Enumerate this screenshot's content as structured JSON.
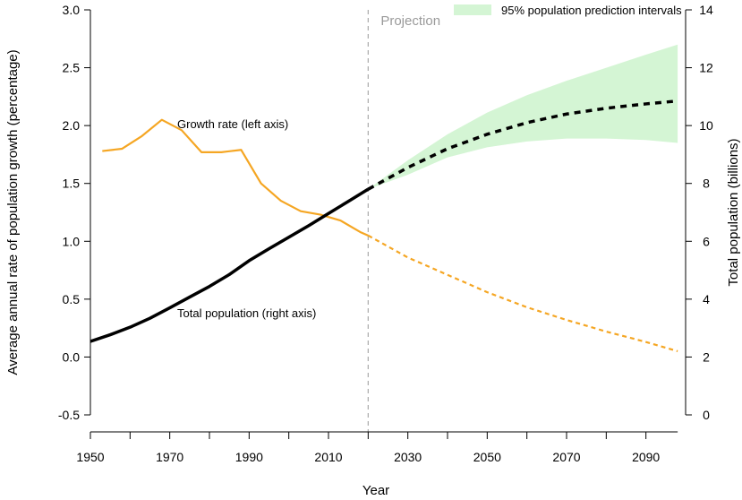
{
  "chart_data": {
    "type": "line",
    "xlabel": "Year",
    "ylabel_left": "Average annual rate of population growth (percentage)",
    "ylabel_right": "Total population (billions)",
    "xlim": [
      1950,
      2100
    ],
    "ylim_left": [
      -0.5,
      3.0
    ],
    "ylim_right": [
      0,
      14
    ],
    "x_ticks": [
      1950,
      1970,
      1990,
      2010,
      2030,
      2050,
      2070,
      2090
    ],
    "y_ticks_left": [
      "3.0",
      "2.5",
      "2.0",
      "1.5",
      "1.0",
      "0.5",
      "0.0",
      "-0.5"
    ],
    "y_ticks_right": [
      "14",
      "12",
      "10",
      "8",
      "6",
      "4",
      "2",
      "0"
    ],
    "projection_year": 2020,
    "projection_label": "Projection",
    "legend": {
      "label": "95% population prediction intervals",
      "position": "top-right",
      "color": "#d4f5d4"
    },
    "annotations": {
      "growth_rate": "Growth rate (left axis)",
      "total_population": "Total population (right axis)"
    },
    "colors": {
      "growth": "#f5a623",
      "population": "#000000",
      "band": "#d4f5d4",
      "projection_line": "#aaaaaa"
    },
    "series": [
      {
        "name": "Growth rate (left axis)",
        "axis": "left",
        "values_observed": [
          [
            1953,
            1.78
          ],
          [
            1958,
            1.8
          ],
          [
            1963,
            1.91
          ],
          [
            1968,
            2.05
          ],
          [
            1973,
            1.96
          ],
          [
            1978,
            1.77
          ],
          [
            1983,
            1.77
          ],
          [
            1988,
            1.79
          ],
          [
            1993,
            1.5
          ],
          [
            1998,
            1.35
          ],
          [
            2003,
            1.26
          ],
          [
            2008,
            1.23
          ],
          [
            2013,
            1.18
          ],
          [
            2018,
            1.08
          ],
          [
            2020,
            1.05
          ]
        ],
        "values_projected": [
          [
            2020,
            1.05
          ],
          [
            2030,
            0.86
          ],
          [
            2040,
            0.71
          ],
          [
            2050,
            0.56
          ],
          [
            2060,
            0.43
          ],
          [
            2070,
            0.32
          ],
          [
            2080,
            0.22
          ],
          [
            2090,
            0.13
          ],
          [
            2098,
            0.05
          ]
        ]
      },
      {
        "name": "Total population (right axis)",
        "axis": "right",
        "values_observed": [
          [
            1950,
            2.54
          ],
          [
            1955,
            2.77
          ],
          [
            1960,
            3.03
          ],
          [
            1965,
            3.34
          ],
          [
            1970,
            3.7
          ],
          [
            1975,
            4.07
          ],
          [
            1980,
            4.44
          ],
          [
            1985,
            4.85
          ],
          [
            1990,
            5.33
          ],
          [
            1995,
            5.74
          ],
          [
            2000,
            6.14
          ],
          [
            2005,
            6.54
          ],
          [
            2010,
            6.96
          ],
          [
            2015,
            7.38
          ],
          [
            2020,
            7.8
          ]
        ],
        "values_projected": [
          [
            2020,
            7.8
          ],
          [
            2030,
            8.55
          ],
          [
            2040,
            9.2
          ],
          [
            2050,
            9.7
          ],
          [
            2060,
            10.1
          ],
          [
            2070,
            10.4
          ],
          [
            2080,
            10.6
          ],
          [
            2090,
            10.75
          ],
          [
            2098,
            10.85
          ]
        ],
        "interval_95": [
          [
            2020,
            7.8,
            7.8
          ],
          [
            2030,
            8.3,
            8.8
          ],
          [
            2040,
            8.9,
            9.7
          ],
          [
            2050,
            9.25,
            10.45
          ],
          [
            2060,
            9.45,
            11.05
          ],
          [
            2070,
            9.55,
            11.55
          ],
          [
            2080,
            9.55,
            12.0
          ],
          [
            2090,
            9.5,
            12.45
          ],
          [
            2098,
            9.4,
            12.8
          ]
        ]
      }
    ]
  }
}
